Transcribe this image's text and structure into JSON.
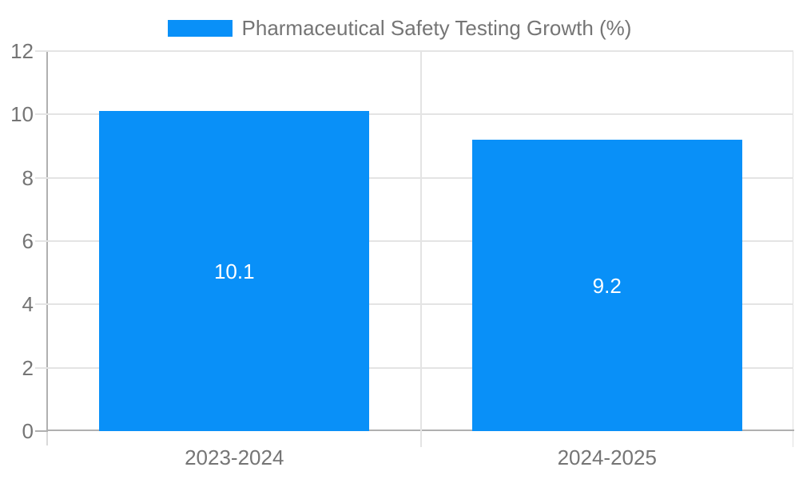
{
  "chart_data": {
    "type": "bar",
    "categories": [
      "2023-2024",
      "2024-2025"
    ],
    "values": [
      10.1,
      9.2
    ],
    "value_labels": [
      "10.1",
      "9.2"
    ],
    "legend": {
      "label": "Pharmaceutical Safety Testing Growth (%)",
      "position": "top"
    },
    "ylim": [
      0,
      12
    ],
    "yticks": [
      0,
      2,
      4,
      6,
      8,
      10,
      12
    ],
    "grid": true,
    "colors": {
      "bar": "#0990f8",
      "value_label": "#ffffff",
      "axis_text": "#757575",
      "gridline": "#e4e4e4",
      "axis_line": "#b0b0b0",
      "background": "#ffffff"
    }
  }
}
